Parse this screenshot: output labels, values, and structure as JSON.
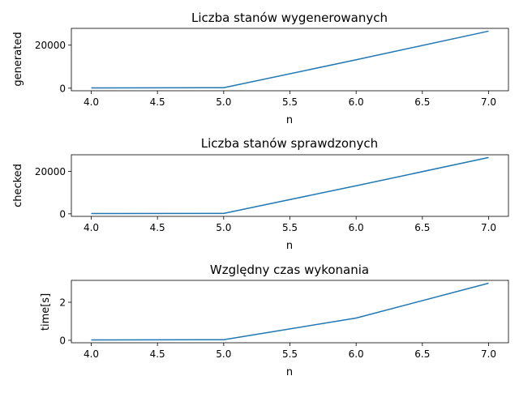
{
  "chart_data": [
    {
      "type": "line",
      "title": "Liczba stanów wygenerowanych",
      "xlabel": "n",
      "ylabel": "generated",
      "x": [
        4,
        5,
        6,
        7
      ],
      "series": [
        {
          "values": [
            120,
            200,
            13200,
            26500
          ],
          "color": "#1f77b4"
        }
      ],
      "xlim": [
        3.85,
        7.15
      ],
      "ylim": [
        -1200,
        27800
      ],
      "xticks": [
        4.0,
        4.5,
        5.0,
        5.5,
        6.0,
        6.5,
        7.0
      ],
      "xticklabels": [
        "4.0",
        "4.5",
        "5.0",
        "5.5",
        "6.0",
        "6.5",
        "7.0"
      ],
      "yticks": [
        0,
        20000
      ],
      "yticklabels": [
        "0",
        "20000"
      ],
      "grid": false
    },
    {
      "type": "line",
      "title": "Liczba stanów sprawdzonych",
      "xlabel": "n",
      "ylabel": "checked",
      "x": [
        4,
        5,
        6,
        7
      ],
      "series": [
        {
          "values": [
            120,
            200,
            13200,
            26500
          ],
          "color": "#1f77b4"
        }
      ],
      "xlim": [
        3.85,
        7.15
      ],
      "ylim": [
        -1200,
        27800
      ],
      "xticks": [
        4.0,
        4.5,
        5.0,
        5.5,
        6.0,
        6.5,
        7.0
      ],
      "xticklabels": [
        "4.0",
        "4.5",
        "5.0",
        "5.5",
        "6.0",
        "6.5",
        "7.0"
      ],
      "yticks": [
        0,
        20000
      ],
      "yticklabels": [
        "0",
        "20000"
      ],
      "grid": false
    },
    {
      "type": "line",
      "title": "Względny czas wykonania",
      "xlabel": "n",
      "ylabel": "time[s]",
      "x": [
        4,
        5,
        6,
        7
      ],
      "series": [
        {
          "values": [
            0.02,
            0.03,
            1.17,
            3.0
          ],
          "color": "#1f77b4"
        }
      ],
      "xlim": [
        3.85,
        7.15
      ],
      "ylim": [
        -0.13,
        3.15
      ],
      "xticks": [
        4.0,
        4.5,
        5.0,
        5.5,
        6.0,
        6.5,
        7.0
      ],
      "xticklabels": [
        "4.0",
        "4.5",
        "5.0",
        "5.5",
        "6.0",
        "6.5",
        "7.0"
      ],
      "yticks": [
        0,
        2
      ],
      "yticklabels": [
        "0",
        "2"
      ],
      "grid": false
    }
  ]
}
